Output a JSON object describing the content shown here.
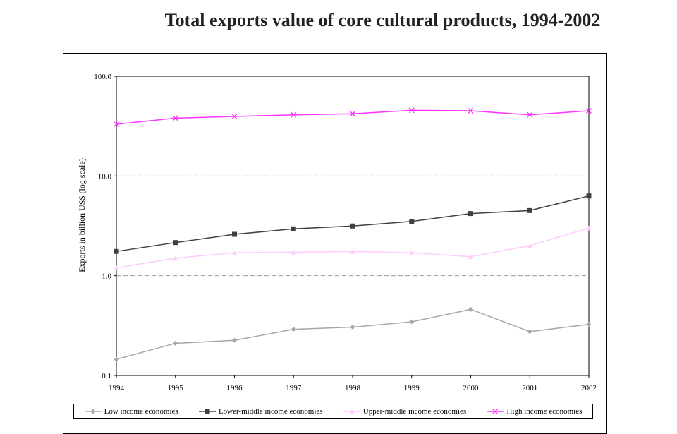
{
  "title": "Total exports value of core cultural products, 1994-2002",
  "chart_data": {
    "type": "line",
    "title": "Total exports value of core cultural products, 1994-2002",
    "xlabel": "",
    "ylabel": "Exports in billion US$ (log scale)",
    "yscale": "log",
    "ylim": [
      0.1,
      100
    ],
    "yticks": [
      "0.1",
      "1.0",
      "10.0",
      "100.0"
    ],
    "grid": "horizontal dashed",
    "legend": "bottom",
    "categories": [
      "1994",
      "1995",
      "1996",
      "1997",
      "1998",
      "1999",
      "2000",
      "2001",
      "2002"
    ],
    "series": [
      {
        "name": "Low income economies",
        "color": "#a6a6a6",
        "marker": "diamond",
        "values": [
          0.145,
          0.21,
          0.225,
          0.29,
          0.305,
          0.345,
          0.46,
          0.275,
          0.325
        ]
      },
      {
        "name": "Lower-middle income economies",
        "color": "#404040",
        "marker": "square",
        "values": [
          1.75,
          2.15,
          2.6,
          2.95,
          3.15,
          3.5,
          4.2,
          4.5,
          6.3
        ]
      },
      {
        "name": "Upper-middle income economies",
        "color": "#ffccff",
        "marker": "triangle",
        "values": [
          1.2,
          1.5,
          1.7,
          1.72,
          1.75,
          1.7,
          1.55,
          2.0,
          3.0
        ]
      },
      {
        "name": "High income economies",
        "color": "#ff33ff",
        "marker": "x",
        "values": [
          33,
          38,
          39.5,
          41,
          42,
          45.5,
          45,
          41,
          45
        ]
      }
    ]
  }
}
